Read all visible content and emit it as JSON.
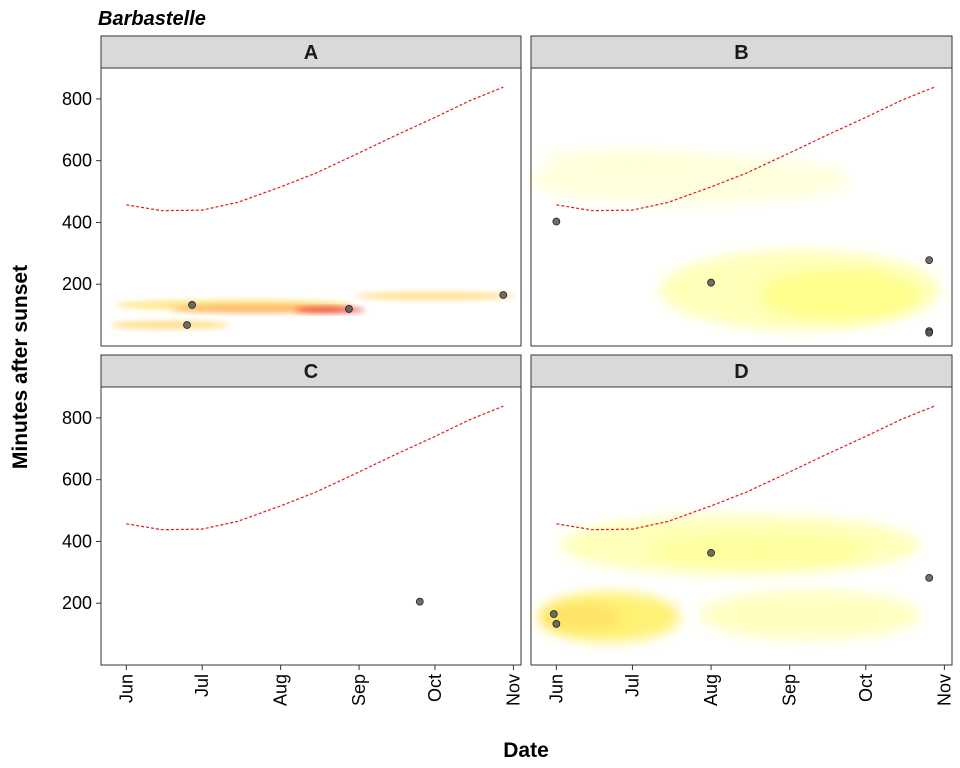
{
  "chart_data": {
    "type": "scatter",
    "title": "Barbastelle",
    "xlabel": "Date",
    "ylabel": "Minutes after sunset",
    "x_ticks": [
      "Jun",
      "Jul",
      "Aug",
      "Sep",
      "Oct",
      "Nov"
    ],
    "x_tick_dates": [
      "2000-06-01",
      "2000-07-01",
      "2000-08-01",
      "2000-09-01",
      "2000-10-01",
      "2000-11-01"
    ],
    "xlim": [
      "2000-05-22",
      "2000-11-04"
    ],
    "y_ticks": [
      200,
      400,
      600,
      800
    ],
    "ylim": [
      0,
      900
    ],
    "grid": false,
    "colors": {
      "sunrise_line": "#e31a1c",
      "points": "#555555",
      "density_low": "#ffffb2",
      "density_high": "#e31a1c",
      "strip": "#d9d9d9"
    },
    "sunrise_curve": {
      "x": [
        "2000-06-01",
        "2000-06-15",
        "2000-07-01",
        "2000-07-15",
        "2000-08-01",
        "2000-08-15",
        "2000-09-01",
        "2000-09-15",
        "2000-10-01",
        "2000-10-15",
        "2000-10-28"
      ],
      "y": [
        457,
        438,
        440,
        465,
        515,
        560,
        625,
        680,
        740,
        795,
        838
      ]
    },
    "panels": [
      {
        "label": "A",
        "points": [
          {
            "x": "2000-06-25",
            "y": 68
          },
          {
            "x": "2000-06-27",
            "y": 133
          },
          {
            "x": "2000-08-28",
            "y": 120
          },
          {
            "x": "2000-10-28",
            "y": 165
          }
        ]
      },
      {
        "label": "B",
        "points": [
          {
            "x": "2000-06-01",
            "y": 403
          },
          {
            "x": "2000-08-01",
            "y": 205
          },
          {
            "x": "2000-10-26",
            "y": 278
          },
          {
            "x": "2000-10-26",
            "y": 48
          },
          {
            "x": "2000-10-26",
            "y": 43
          }
        ]
      },
      {
        "label": "C",
        "points": [
          {
            "x": "2000-09-25",
            "y": 205
          }
        ]
      },
      {
        "label": "D",
        "points": [
          {
            "x": "2000-05-31",
            "y": 165
          },
          {
            "x": "2000-06-01",
            "y": 133
          },
          {
            "x": "2000-08-01",
            "y": 363
          },
          {
            "x": "2000-10-26",
            "y": 282
          }
        ]
      }
    ]
  }
}
